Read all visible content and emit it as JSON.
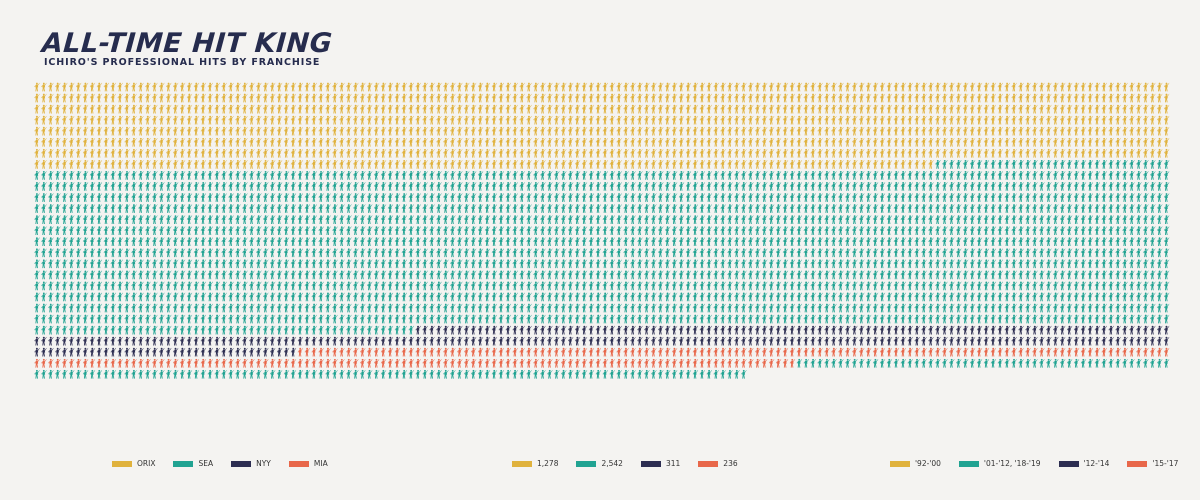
{
  "title": "ALL-TIME HIT KING",
  "subtitle": "ICHIRO'S PROFESSIONAL HITS BY FRANCHISE",
  "chart_data": {
    "type": "waffle",
    "unit": "one batter icon = one hit",
    "total": 4367,
    "series": [
      {
        "name": "ORIX",
        "value": 1278,
        "years": "'92-'00",
        "color": "#e0b23d"
      },
      {
        "name": "SEA",
        "value": 2542,
        "years": "'01-'12, '18-'19",
        "color": "#21a392"
      },
      {
        "name": "NYY",
        "value": 311,
        "years": "'12-'14",
        "color": "#2d2e52"
      },
      {
        "name": "MIA",
        "value": 236,
        "years": "'15-'17",
        "color": "#e8674a"
      }
    ],
    "order": [
      "ORIX",
      "SEA",
      "NYY",
      "MIA",
      "SEA"
    ],
    "segments": [
      {
        "series": "ORIX",
        "count": 1278
      },
      {
        "series": "SEA",
        "count": 2385
      },
      {
        "series": "NYY",
        "count": 311
      },
      {
        "series": "MIA",
        "count": 236
      },
      {
        "series": "SEA",
        "count": 157
      }
    ]
  },
  "legends": {
    "teams": [
      {
        "label": "ORIX",
        "color": "#e0b23d"
      },
      {
        "label": "SEA",
        "color": "#21a392"
      },
      {
        "label": "NYY",
        "color": "#2d2e52"
      },
      {
        "label": "MIA",
        "color": "#e8674a"
      }
    ],
    "hits": [
      {
        "label": "1,278",
        "color": "#e0b23d"
      },
      {
        "label": "2,542",
        "color": "#21a392"
      },
      {
        "label": "311",
        "color": "#2d2e52"
      },
      {
        "label": "236",
        "color": "#e8674a"
      }
    ],
    "years": [
      {
        "label": "'92-'00",
        "color": "#e0b23d"
      },
      {
        "label": "'01-'12, '18-'19",
        "color": "#21a392"
      },
      {
        "label": "'12-'14",
        "color": "#2d2e52"
      },
      {
        "label": "'15-'17",
        "color": "#e8674a"
      }
    ]
  }
}
